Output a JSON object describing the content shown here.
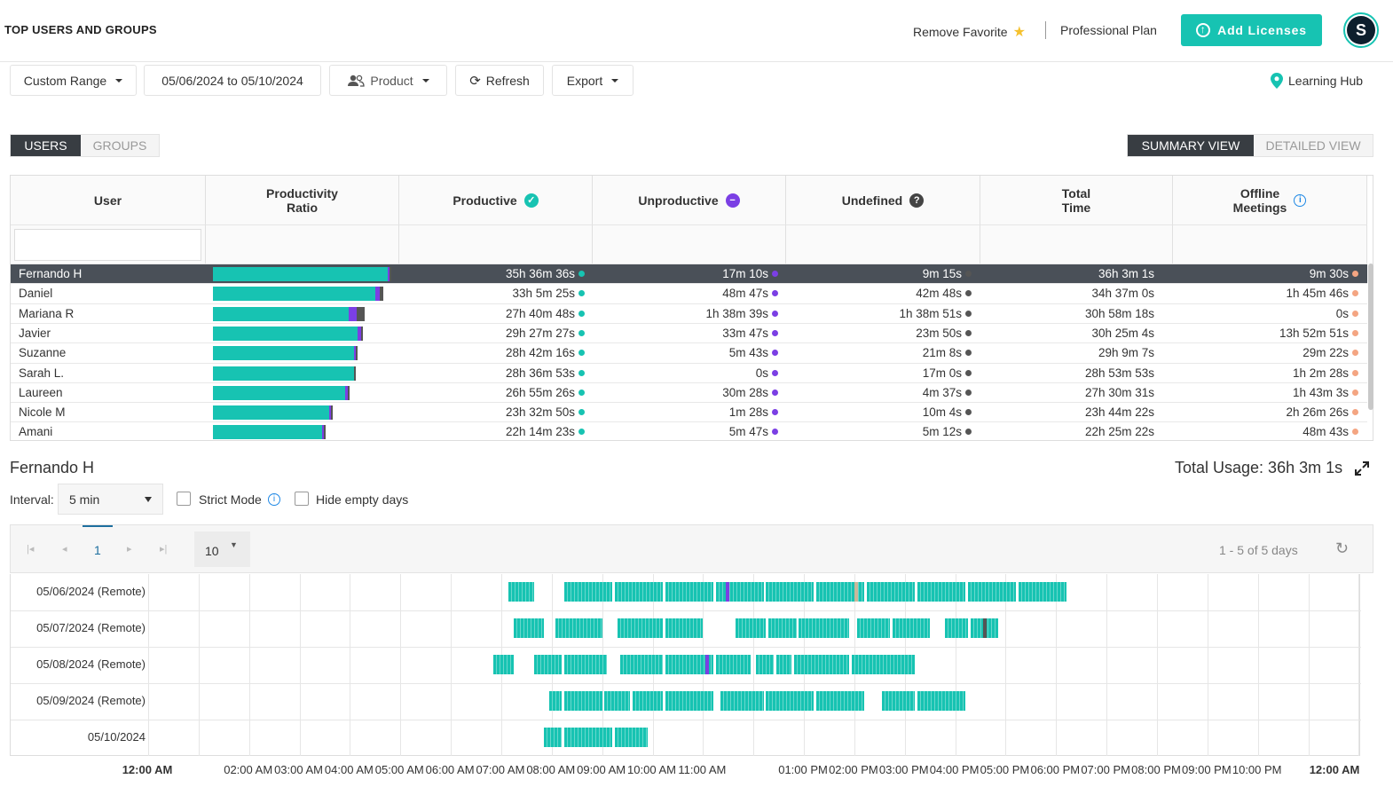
{
  "header": {
    "title": "TOP USERS AND GROUPS",
    "favorite_label": "Remove Favorite",
    "plan_label": "Professional Plan",
    "add_licenses_label": "Add Licenses",
    "avatar_initial": "S"
  },
  "toolbar": {
    "range_label": "Custom Range",
    "date_range": "05/06/2024 to 05/10/2024",
    "product_label": "Product",
    "refresh_label": "Refresh",
    "export_label": "Export",
    "learning_hub_label": "Learning Hub"
  },
  "tabs": {
    "users": "USERS",
    "groups": "GROUPS",
    "summary_view": "SUMMARY VIEW",
    "detailed_view": "DETAILED VIEW"
  },
  "columns": {
    "user": "User",
    "ratio_1": "Productivity",
    "ratio_2": "Ratio",
    "productive": "Productive",
    "unproductive": "Unproductive",
    "undefined": "Undefined",
    "total_1": "Total",
    "total_2": "Time",
    "offline_1": "Offline",
    "offline_2": "Meetings"
  },
  "colors": {
    "productive": "#17c3b2",
    "unproductive": "#7b3fe4",
    "undefined": "#555555",
    "offline": "#f4a582"
  },
  "users": [
    {
      "name": "Fernando H",
      "productive": "35h 36m 36s",
      "unproductive": "17m 10s",
      "undefined": "9m 15s",
      "total": "36h 3m 1s",
      "offline": "9m 30s",
      "ratio": [
        0.986,
        0.008,
        0.004
      ]
    },
    {
      "name": "Daniel",
      "productive": "33h 5m 25s",
      "unproductive": "48m 47s",
      "undefined": "42m 48s",
      "total": "34h 37m 0s",
      "offline": "1h 45m 46s",
      "ratio": [
        0.917,
        0.023,
        0.02
      ]
    },
    {
      "name": "Mariana R",
      "productive": "27h 40m 48s",
      "unproductive": "1h 38m 39s",
      "undefined": "1h 38m 51s",
      "total": "30h 58m 18s",
      "offline": "0s",
      "ratio": [
        0.767,
        0.045,
        0.045
      ]
    },
    {
      "name": "Javier",
      "productive": "29h 27m 27s",
      "unproductive": "33m 47s",
      "undefined": "23m 50s",
      "total": "30h 25m 4s",
      "offline": "13h 52m 51s",
      "ratio": [
        0.817,
        0.016,
        0.011
      ]
    },
    {
      "name": "Suzanne",
      "productive": "28h 42m 16s",
      "unproductive": "5m 43s",
      "undefined": "21m 8s",
      "total": "29h 9m 7s",
      "offline": "29m 22s",
      "ratio": [
        0.796,
        0.003,
        0.01
      ]
    },
    {
      "name": "Sarah L.",
      "productive": "28h 36m 53s",
      "unproductive": "0s",
      "undefined": "17m 0s",
      "total": "28h 53m 53s",
      "offline": "1h 2m 28s",
      "ratio": [
        0.793,
        0.0,
        0.008
      ]
    },
    {
      "name": "Laureen",
      "productive": "26h 55m 26s",
      "unproductive": "30m 28s",
      "undefined": "4m 37s",
      "total": "27h 30m 31s",
      "offline": "1h 43m 3s",
      "ratio": [
        0.747,
        0.014,
        0.002
      ]
    },
    {
      "name": "Nicole M",
      "productive": "23h 32m 50s",
      "unproductive": "1m 28s",
      "undefined": "10m 4s",
      "total": "23h 44m 22s",
      "offline": "2h 26m 26s",
      "ratio": [
        0.653,
        0.002,
        0.005
      ]
    },
    {
      "name": "Amani",
      "productive": "22h 14m 23s",
      "unproductive": "5m 47s",
      "undefined": "5m 12s",
      "total": "22h 25m 22s",
      "offline": "48m 43s",
      "ratio": [
        0.617,
        0.003,
        0.002
      ]
    }
  ],
  "detail": {
    "user_name": "Fernando H",
    "total_usage": "Total Usage: 36h 3m 1s",
    "interval_label": "Interval:",
    "interval_value": "5 min",
    "strict_mode_label": "Strict Mode",
    "hide_empty_label": "Hide empty days",
    "current_page": "1",
    "page_size": "10",
    "page_summary": "1 - 5 of 5 days"
  },
  "timeline": {
    "days": [
      "05/06/2024 (Remote)",
      "05/07/2024 (Remote)",
      "05/08/2024 (Remote)",
      "05/09/2024 (Remote)",
      "05/10/2024"
    ],
    "ticks": [
      "12:00 AM",
      "02:00 AM",
      "03:00 AM",
      "04:00 AM",
      "05:00 AM",
      "06:00 AM",
      "07:00 AM",
      "08:00 AM",
      "09:00 AM",
      "10:00 AM",
      "11:00 AM",
      "01:00 PM",
      "02:00 PM",
      "03:00 PM",
      "04:00 PM",
      "05:00 PM",
      "06:00 PM",
      "07:00 PM",
      "08:00 PM",
      "09:00 PM",
      "10:00 PM",
      "12:00 AM"
    ],
    "activity_hours": [
      [
        [
          7.15,
          7.65
        ],
        [
          8.25,
          9.2
        ],
        [
          9.25,
          10.2
        ],
        [
          10.25,
          11.2
        ],
        [
          11.25,
          12.2
        ],
        [
          12.25,
          13.2
        ],
        [
          13.25,
          14.2
        ],
        [
          14.25,
          15.2
        ],
        [
          15.25,
          16.2
        ],
        [
          16.25,
          17.2
        ],
        [
          17.25,
          18.2
        ]
      ],
      [
        [
          7.25,
          7.85
        ],
        [
          8.08,
          9.0
        ],
        [
          9.3,
          10.2
        ],
        [
          10.25,
          11.0
        ],
        [
          11.65,
          12.25
        ],
        [
          12.3,
          12.85
        ],
        [
          12.9,
          13.9
        ],
        [
          14.05,
          14.7
        ],
        [
          14.75,
          15.5
        ],
        [
          15.8,
          16.25
        ],
        [
          16.3,
          16.85
        ]
      ],
      [
        [
          6.85,
          7.25
        ],
        [
          7.65,
          8.2
        ],
        [
          8.25,
          9.1
        ],
        [
          9.35,
          10.2
        ],
        [
          10.25,
          11.2
        ],
        [
          11.25,
          11.95
        ],
        [
          12.05,
          12.4
        ],
        [
          12.45,
          12.75
        ],
        [
          12.8,
          13.9
        ],
        [
          13.95,
          15.2
        ]
      ],
      [
        [
          7.95,
          8.2
        ],
        [
          8.25,
          9.0
        ],
        [
          9.05,
          9.55
        ],
        [
          9.6,
          10.2
        ],
        [
          10.25,
          11.2
        ],
        [
          11.35,
          12.2
        ],
        [
          12.25,
          13.2
        ],
        [
          13.25,
          14.2
        ],
        [
          14.55,
          15.2
        ],
        [
          15.25,
          16.2
        ]
      ],
      [
        [
          7.85,
          8.2
        ],
        [
          8.25,
          9.2
        ],
        [
          9.25,
          9.9
        ]
      ]
    ]
  }
}
